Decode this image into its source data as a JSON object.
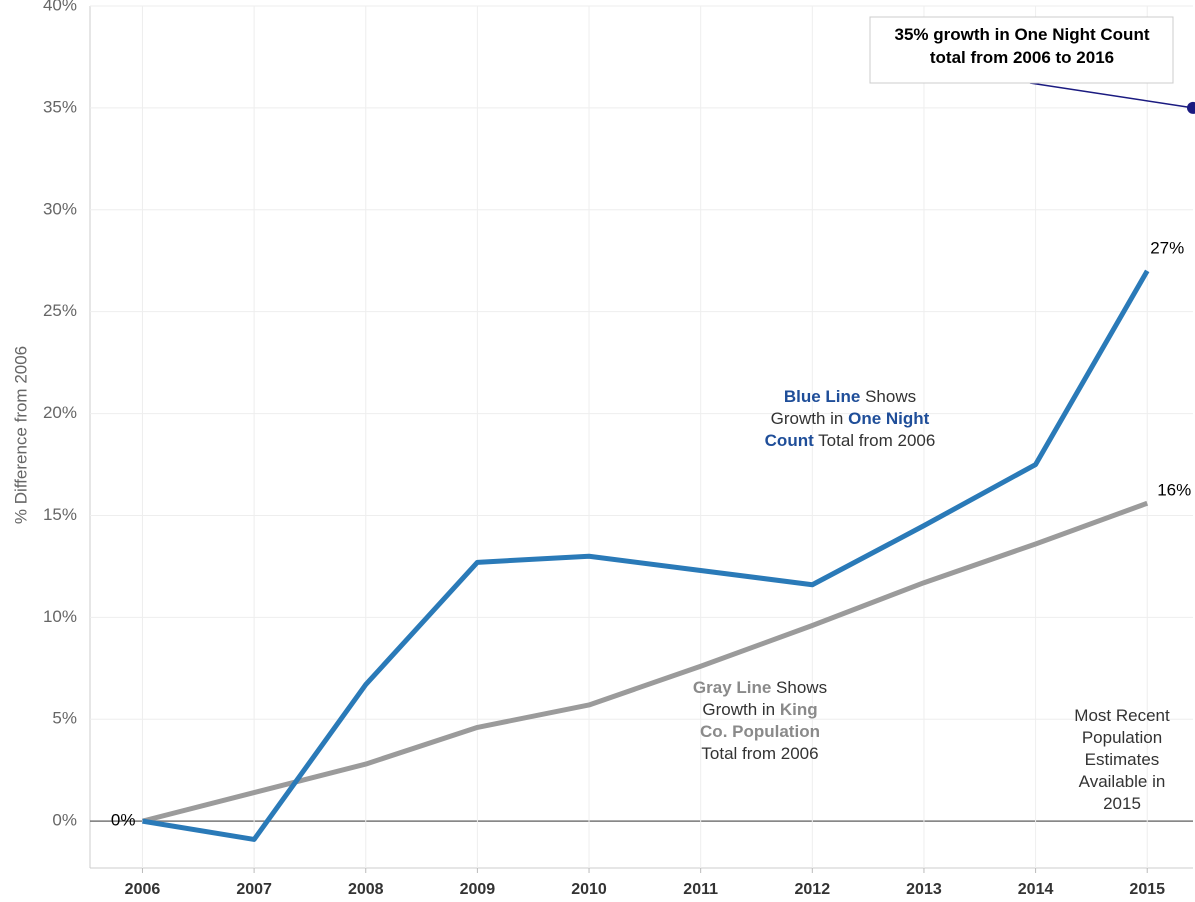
{
  "chart_data": {
    "type": "line",
    "y_label": "% Difference from 2006",
    "x": [
      2006,
      2007,
      2008,
      2009,
      2010,
      2011,
      2012,
      2013,
      2014,
      2015
    ],
    "xlim": [
      2005.53,
      2015.41
    ],
    "xticks": [
      2006,
      2007,
      2008,
      2009,
      2010,
      2011,
      2012,
      2013,
      2014,
      2015
    ],
    "ylim": [
      -2.3,
      40
    ],
    "yticks": [
      {
        "value": 0,
        "label": "0%"
      },
      {
        "value": 5,
        "label": "5%"
      },
      {
        "value": 10,
        "label": "10%"
      },
      {
        "value": 15,
        "label": "15%"
      },
      {
        "value": 20,
        "label": "20%"
      },
      {
        "value": 25,
        "label": "25%"
      },
      {
        "value": 30,
        "label": "30%"
      },
      {
        "value": 35,
        "label": "35%"
      },
      {
        "value": 40,
        "label": "40%"
      }
    ],
    "grid": true,
    "series": [
      {
        "color": "#9b9b9b",
        "values": [
          0,
          1.4,
          2.8,
          4.6,
          5.7,
          7.6,
          9.6,
          11.7,
          13.6,
          15.6
        ],
        "value_labels": [
          null,
          null,
          null,
          null,
          null,
          null,
          null,
          null,
          null,
          "16%"
        ]
      },
      {
        "color": "#2a7ab8",
        "values": [
          0,
          -0.9,
          6.7,
          12.7,
          13.0,
          12.3,
          11.6,
          14.5,
          17.5,
          27.0
        ],
        "value_labels": [
          "0%",
          null,
          null,
          null,
          null,
          null,
          null,
          null,
          null,
          "27%"
        ]
      }
    ],
    "annotations": [
      {
        "lines": [
          [
            "35% growth in One Night Count"
          ],
          [
            "total from 2006 to 2016"
          ]
        ],
        "value": 35,
        "color": "#1a1a80"
      },
      {
        "lines": [
          [
            {
              "text": "Blue Line",
              "bold": true
            },
            " Shows"
          ],
          [
            "Growth in ",
            {
              "text": "One Night",
              "bold": true
            }
          ],
          [
            {
              "text": "Count",
              "bold": true
            },
            " Total from 2006"
          ]
        ],
        "color": "#1f4e99"
      },
      {
        "lines": [
          [
            {
              "text": "Gray Line",
              "bold": true
            },
            " Shows"
          ],
          [
            "Growth in ",
            {
              "text": "King",
              "bold": true
            }
          ],
          [
            {
              "text": "Co. Population",
              "bold": true
            }
          ],
          [
            "Total from 2006"
          ]
        ],
        "color": "#8a8a8a"
      },
      {
        "lines": [
          [
            "Most Recent"
          ],
          [
            "Population"
          ],
          [
            "Estimates"
          ],
          [
            "Available in"
          ],
          [
            "2015"
          ]
        ]
      }
    ]
  }
}
